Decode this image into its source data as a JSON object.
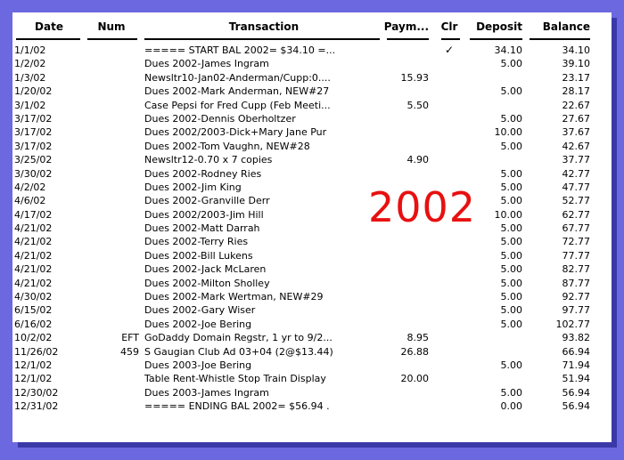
{
  "colors": {
    "background": "#6b68e0",
    "card_shadow": "#3b38a8",
    "watermark_red": "#e81010",
    "text": "#000000"
  },
  "watermark": {
    "text": "2002"
  },
  "table": {
    "columns": [
      {
        "key": "date",
        "label": "Date",
        "align": "ac",
        "cls": "date"
      },
      {
        "key": "num",
        "label": "Num",
        "align": "ac",
        "cls": "num"
      },
      {
        "key": "transaction",
        "label": "Transaction",
        "align": "ac",
        "cls": "trans"
      },
      {
        "key": "payment",
        "label": "Paym...",
        "align": "ar",
        "cls": "paym"
      },
      {
        "key": "clr",
        "label": "Clr",
        "align": "ac",
        "cls": "clr"
      },
      {
        "key": "deposit",
        "label": "Deposit",
        "align": "ar",
        "cls": "deposit"
      },
      {
        "key": "balance",
        "label": "Balance",
        "align": "ar",
        "cls": "balance"
      }
    ],
    "value_alignments": {
      "date": "al",
      "num": "ar",
      "transaction": "al",
      "payment": "ar",
      "clr": "ac",
      "deposit": "ar",
      "balance": "ar"
    },
    "rows": [
      {
        "date": "1/1/02",
        "num": "",
        "transaction": "===== START BAL 2002= $34.10  =...",
        "payment": "",
        "clr": "✓",
        "deposit": "34.10",
        "balance": "34.10"
      },
      {
        "date": "1/2/02",
        "num": "",
        "transaction": "Dues 2002-James Ingram",
        "payment": "",
        "clr": "",
        "deposit": "5.00",
        "balance": "39.10"
      },
      {
        "date": "1/3/02",
        "num": "",
        "transaction": "Newsltr10-Jan02-Anderman/Cupp:0....",
        "payment": "15.93",
        "clr": "",
        "deposit": "",
        "balance": "23.17"
      },
      {
        "date": "1/20/02",
        "num": "",
        "transaction": "Dues 2002-Mark Anderman, NEW#27",
        "payment": "",
        "clr": "",
        "deposit": "5.00",
        "balance": "28.17"
      },
      {
        "date": "3/1/02",
        "num": "",
        "transaction": "Case Pepsi for Fred Cupp (Feb Meeti...",
        "payment": "5.50",
        "clr": "",
        "deposit": "",
        "balance": "22.67"
      },
      {
        "date": "3/17/02",
        "num": "",
        "transaction": "Dues 2002-Dennis Oberholtzer",
        "payment": "",
        "clr": "",
        "deposit": "5.00",
        "balance": "27.67"
      },
      {
        "date": "3/17/02",
        "num": "",
        "transaction": "Dues 2002/2003-Dick+Mary Jane Pur",
        "payment": "",
        "clr": "",
        "deposit": "10.00",
        "balance": "37.67"
      },
      {
        "date": "3/17/02",
        "num": "",
        "transaction": "Dues 2002-Tom Vaughn, NEW#28",
        "payment": "",
        "clr": "",
        "deposit": "5.00",
        "balance": "42.67"
      },
      {
        "date": "3/25/02",
        "num": "",
        "transaction": "Newsltr12-0.70 x 7 copies",
        "payment": "4.90",
        "clr": "",
        "deposit": "",
        "balance": "37.77"
      },
      {
        "date": "3/30/02",
        "num": "",
        "transaction": "Dues 2002-Rodney Ries",
        "payment": "",
        "clr": "",
        "deposit": "5.00",
        "balance": "42.77"
      },
      {
        "date": "4/2/02",
        "num": "",
        "transaction": "Dues 2002-Jim King",
        "payment": "",
        "clr": "",
        "deposit": "5.00",
        "balance": "47.77"
      },
      {
        "date": "4/6/02",
        "num": "",
        "transaction": "Dues 2002-Granville Derr",
        "payment": "",
        "clr": "",
        "deposit": "5.00",
        "balance": "52.77"
      },
      {
        "date": "4/17/02",
        "num": "",
        "transaction": "Dues 2002/2003-Jim Hill",
        "payment": "",
        "clr": "",
        "deposit": "10.00",
        "balance": "62.77"
      },
      {
        "date": "4/21/02",
        "num": "",
        "transaction": "Dues 2002-Matt Darrah",
        "payment": "",
        "clr": "",
        "deposit": "5.00",
        "balance": "67.77"
      },
      {
        "date": "4/21/02",
        "num": "",
        "transaction": "Dues 2002-Terry Ries",
        "payment": "",
        "clr": "",
        "deposit": "5.00",
        "balance": "72.77"
      },
      {
        "date": "4/21/02",
        "num": "",
        "transaction": "Dues 2002-Bill Lukens",
        "payment": "",
        "clr": "",
        "deposit": "5.00",
        "balance": "77.77"
      },
      {
        "date": "4/21/02",
        "num": "",
        "transaction": "Dues 2002-Jack McLaren",
        "payment": "",
        "clr": "",
        "deposit": "5.00",
        "balance": "82.77"
      },
      {
        "date": "4/21/02",
        "num": "",
        "transaction": "Dues 2002-Milton Sholley",
        "payment": "",
        "clr": "",
        "deposit": "5.00",
        "balance": "87.77"
      },
      {
        "date": "4/30/02",
        "num": "",
        "transaction": "Dues 2002-Mark Wertman, NEW#29",
        "payment": "",
        "clr": "",
        "deposit": "5.00",
        "balance": "92.77"
      },
      {
        "date": "6/15/02",
        "num": "",
        "transaction": "Dues 2002-Gary Wiser",
        "payment": "",
        "clr": "",
        "deposit": "5.00",
        "balance": "97.77"
      },
      {
        "date": "6/16/02",
        "num": "",
        "transaction": "Dues 2002-Joe Bering",
        "payment": "",
        "clr": "",
        "deposit": "5.00",
        "balance": "102.77"
      },
      {
        "date": "10/2/02",
        "num": "EFT",
        "transaction": "GoDaddy Domain Regstr, 1 yr to 9/2...",
        "payment": "8.95",
        "clr": "",
        "deposit": "",
        "balance": "93.82"
      },
      {
        "date": "11/26/02",
        "num": "459",
        "transaction": "S Gaugian Club Ad 03+04 (2@$13.44)",
        "payment": "26.88",
        "clr": "",
        "deposit": "",
        "balance": "66.94"
      },
      {
        "date": "12/1/02",
        "num": "",
        "transaction": "Dues 2003-Joe Bering",
        "payment": "",
        "clr": "",
        "deposit": "5.00",
        "balance": "71.94"
      },
      {
        "date": "12/1/02",
        "num": "",
        "transaction": "Table Rent-Whistle Stop Train Display",
        "payment": "20.00",
        "clr": "",
        "deposit": "",
        "balance": "51.94"
      },
      {
        "date": "12/30/02",
        "num": "",
        "transaction": "Dues 2003-James Ingram",
        "payment": "",
        "clr": "",
        "deposit": "5.00",
        "balance": "56.94"
      },
      {
        "date": "12/31/02",
        "num": "",
        "transaction": "===== ENDING BAL 2002=  $56.94  .",
        "payment": "",
        "clr": "",
        "deposit": "0.00",
        "balance": "56.94"
      }
    ]
  }
}
